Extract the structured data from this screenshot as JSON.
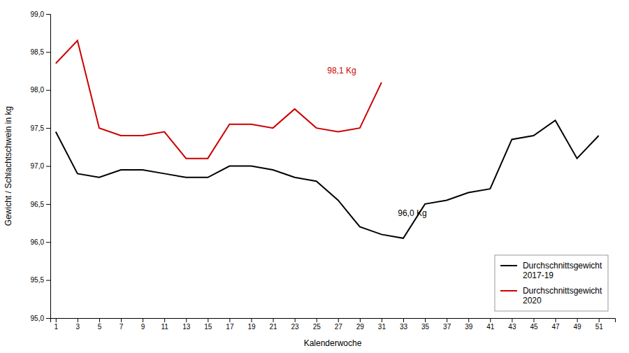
{
  "chart_data": {
    "type": "line",
    "xlabel": "Kalenderwoche",
    "ylabel": "Gewicht / Schlachtschwein in kg",
    "xlim": [
      0.5,
      52.5
    ],
    "ylim": [
      95.0,
      99.0
    ],
    "xticks": [
      1,
      3,
      5,
      7,
      9,
      11,
      13,
      15,
      17,
      19,
      21,
      23,
      25,
      27,
      29,
      31,
      33,
      35,
      37,
      39,
      41,
      43,
      45,
      47,
      49,
      51
    ],
    "yticks": [
      {
        "value": 95.0,
        "label": "95,0"
      },
      {
        "value": 95.5,
        "label": "95,5"
      },
      {
        "value": 96.0,
        "label": "96,0"
      },
      {
        "value": 96.5,
        "label": "96,5"
      },
      {
        "value": 97.0,
        "label": "97,0"
      },
      {
        "value": 97.5,
        "label": "97,5"
      },
      {
        "value": 98.0,
        "label": "98,0"
      },
      {
        "value": 98.5,
        "label": "98,5"
      },
      {
        "value": 99.0,
        "label": "99,0"
      }
    ],
    "grid": false,
    "legend": "lower right",
    "series": [
      {
        "name": "Durchschnittsgewicht\n2017-19",
        "color": "#000000",
        "x": [
          1,
          3,
          5,
          7,
          9,
          11,
          13,
          15,
          17,
          19,
          21,
          23,
          25,
          27,
          29,
          31,
          33,
          35,
          37,
          39,
          41,
          43,
          45,
          47,
          49,
          51
        ],
        "values": [
          97.45,
          96.9,
          96.85,
          96.95,
          96.95,
          96.9,
          96.85,
          96.85,
          97.0,
          97.0,
          96.95,
          96.85,
          96.8,
          96.55,
          96.2,
          96.1,
          96.05,
          96.5,
          96.55,
          96.65,
          96.7,
          97.35,
          97.4,
          97.6,
          97.1,
          97.4
        ]
      },
      {
        "name": "Durchschnittsgewicht\n2020",
        "color": "#cc0000",
        "x": [
          1,
          3,
          5,
          7,
          9,
          11,
          13,
          15,
          17,
          19,
          21,
          23,
          25,
          27,
          29,
          31
        ],
        "values": [
          98.35,
          98.65,
          97.5,
          97.4,
          97.4,
          97.45,
          97.1,
          97.1,
          97.55,
          97.55,
          97.5,
          97.75,
          97.5,
          97.45,
          97.5,
          98.1
        ]
      }
    ],
    "annotations": [
      {
        "text": "96,0 Kg",
        "x": 32.5,
        "y": 96.32,
        "color": "#000000"
      },
      {
        "text": "98,1 Kg",
        "x": 26.0,
        "y": 98.2,
        "color": "#cc0000"
      }
    ]
  }
}
